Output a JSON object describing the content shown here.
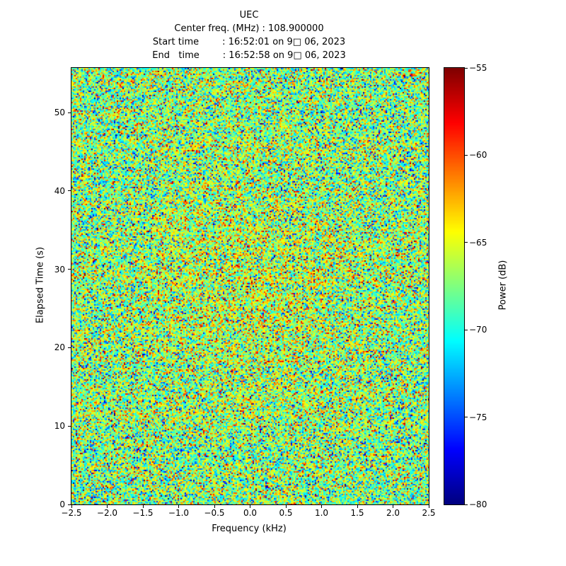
{
  "chart_data": {
    "type": "heatmap",
    "title_lines": [
      "UEC",
      "Center freq. (MHz) : 108.900000",
      "Start time        : 16:52:01 on 9□ 06, 2023",
      "End   time        : 16:52:58 on 9□ 06, 2023"
    ],
    "xlabel": "Frequency (kHz)",
    "ylabel": "Elapsed Time (s)",
    "xlim": [
      -2.5,
      2.5
    ],
    "ylim": [
      0,
      55.7
    ],
    "xticks": [
      -2.5,
      -2.0,
      -1.5,
      -1.0,
      -0.5,
      0.0,
      0.5,
      1.0,
      1.5,
      2.0,
      2.5
    ],
    "yticks": [
      0,
      10,
      20,
      30,
      40,
      50
    ],
    "colorbar": {
      "label": "Power (dB)",
      "min": -80,
      "max": -55,
      "ticks": [
        -55,
        -60,
        -65,
        -70,
        -75,
        -80
      ],
      "colormap": "jet"
    },
    "values_description": "dense random wideband noise spectrogram; power mostly between -72 and -62 dB (green/yellow) with scattered dark-blue dips near -80 dB and sparse red peaks near -55 dB; slightly warmer values toward the center of the image",
    "noise": {
      "mean": -67.3,
      "std": 3.9,
      "seed": 42,
      "center_boost_db": 1.4
    },
    "grid": false,
    "legend_position": "colorbar-right"
  }
}
